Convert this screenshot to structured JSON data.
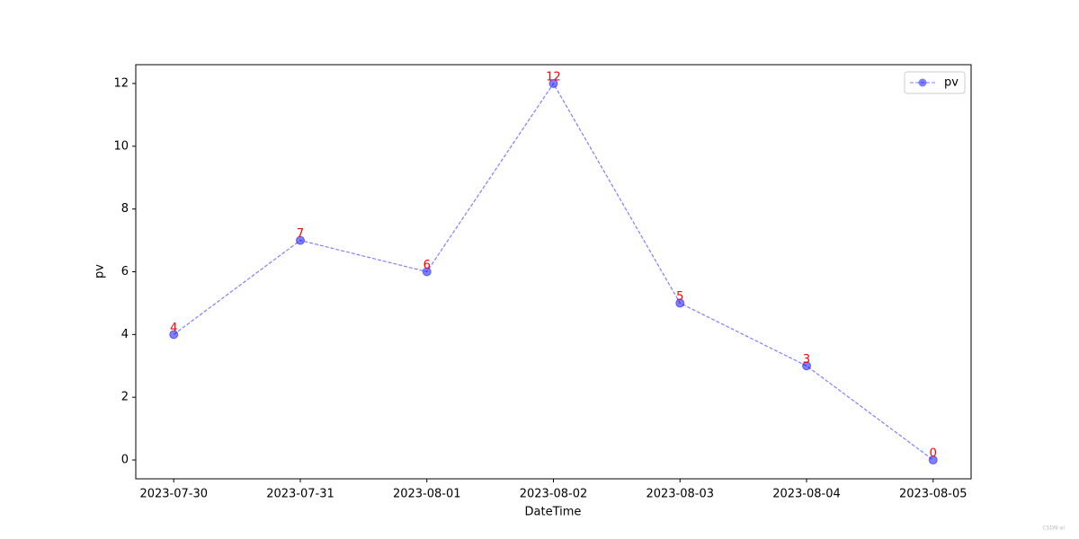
{
  "chart_data": {
    "type": "line",
    "categories": [
      "2023-07-30",
      "2023-07-31",
      "2023-08-01",
      "2023-08-02",
      "2023-08-03",
      "2023-08-04",
      "2023-08-05"
    ],
    "series": [
      {
        "name": "pv",
        "color": "#0000ff",
        "values": [
          4,
          7,
          6,
          12,
          5,
          3,
          0
        ]
      }
    ],
    "x_label": "DateTime",
    "y_label": "pv",
    "ylim": [
      -0.6,
      12.6
    ],
    "yticks": [
      0,
      2,
      4,
      6,
      8,
      10,
      12
    ],
    "value_label_color": "#ff0000",
    "line_style": "dashed",
    "legend": "upper right",
    "watermark": "CSDN-ai"
  }
}
